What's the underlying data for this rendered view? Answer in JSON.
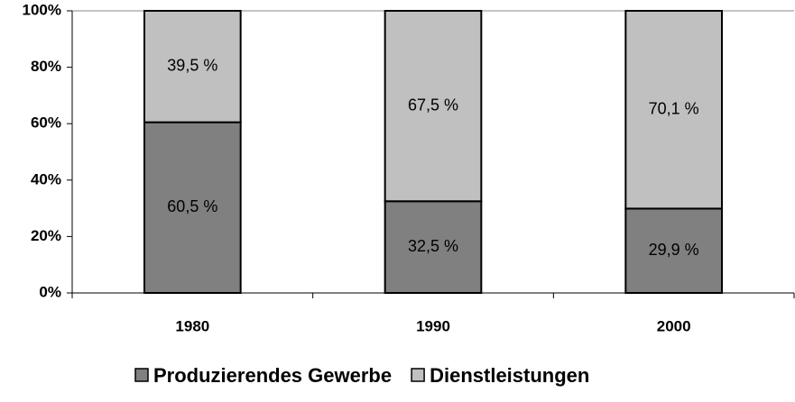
{
  "chart_data": {
    "type": "stacked_bar",
    "categories": [
      "1980",
      "1990",
      "2000"
    ],
    "series": [
      {
        "name": "Produzierendes Gewerbe",
        "color": "#808080",
        "values": [
          60.5,
          32.5,
          29.9
        ],
        "value_labels": [
          "60,5 %",
          "32,5 %",
          "29,9 %"
        ]
      },
      {
        "name": "Dienstleistungen",
        "color": "#c0c0c0",
        "values": [
          39.5,
          67.5,
          70.1
        ],
        "value_labels": [
          "39,5 %",
          "67,5 %",
          "70,1 %"
        ]
      }
    ],
    "ylim": [
      0,
      100
    ],
    "yticks": [
      {
        "value": 0,
        "label": "0%"
      },
      {
        "value": 20,
        "label": "20%"
      },
      {
        "value": 40,
        "label": "40%"
      },
      {
        "value": 60,
        "label": "60%"
      },
      {
        "value": 80,
        "label": "80%"
      },
      {
        "value": 100,
        "label": "100%"
      }
    ],
    "grid": false,
    "legend": "bottom"
  }
}
